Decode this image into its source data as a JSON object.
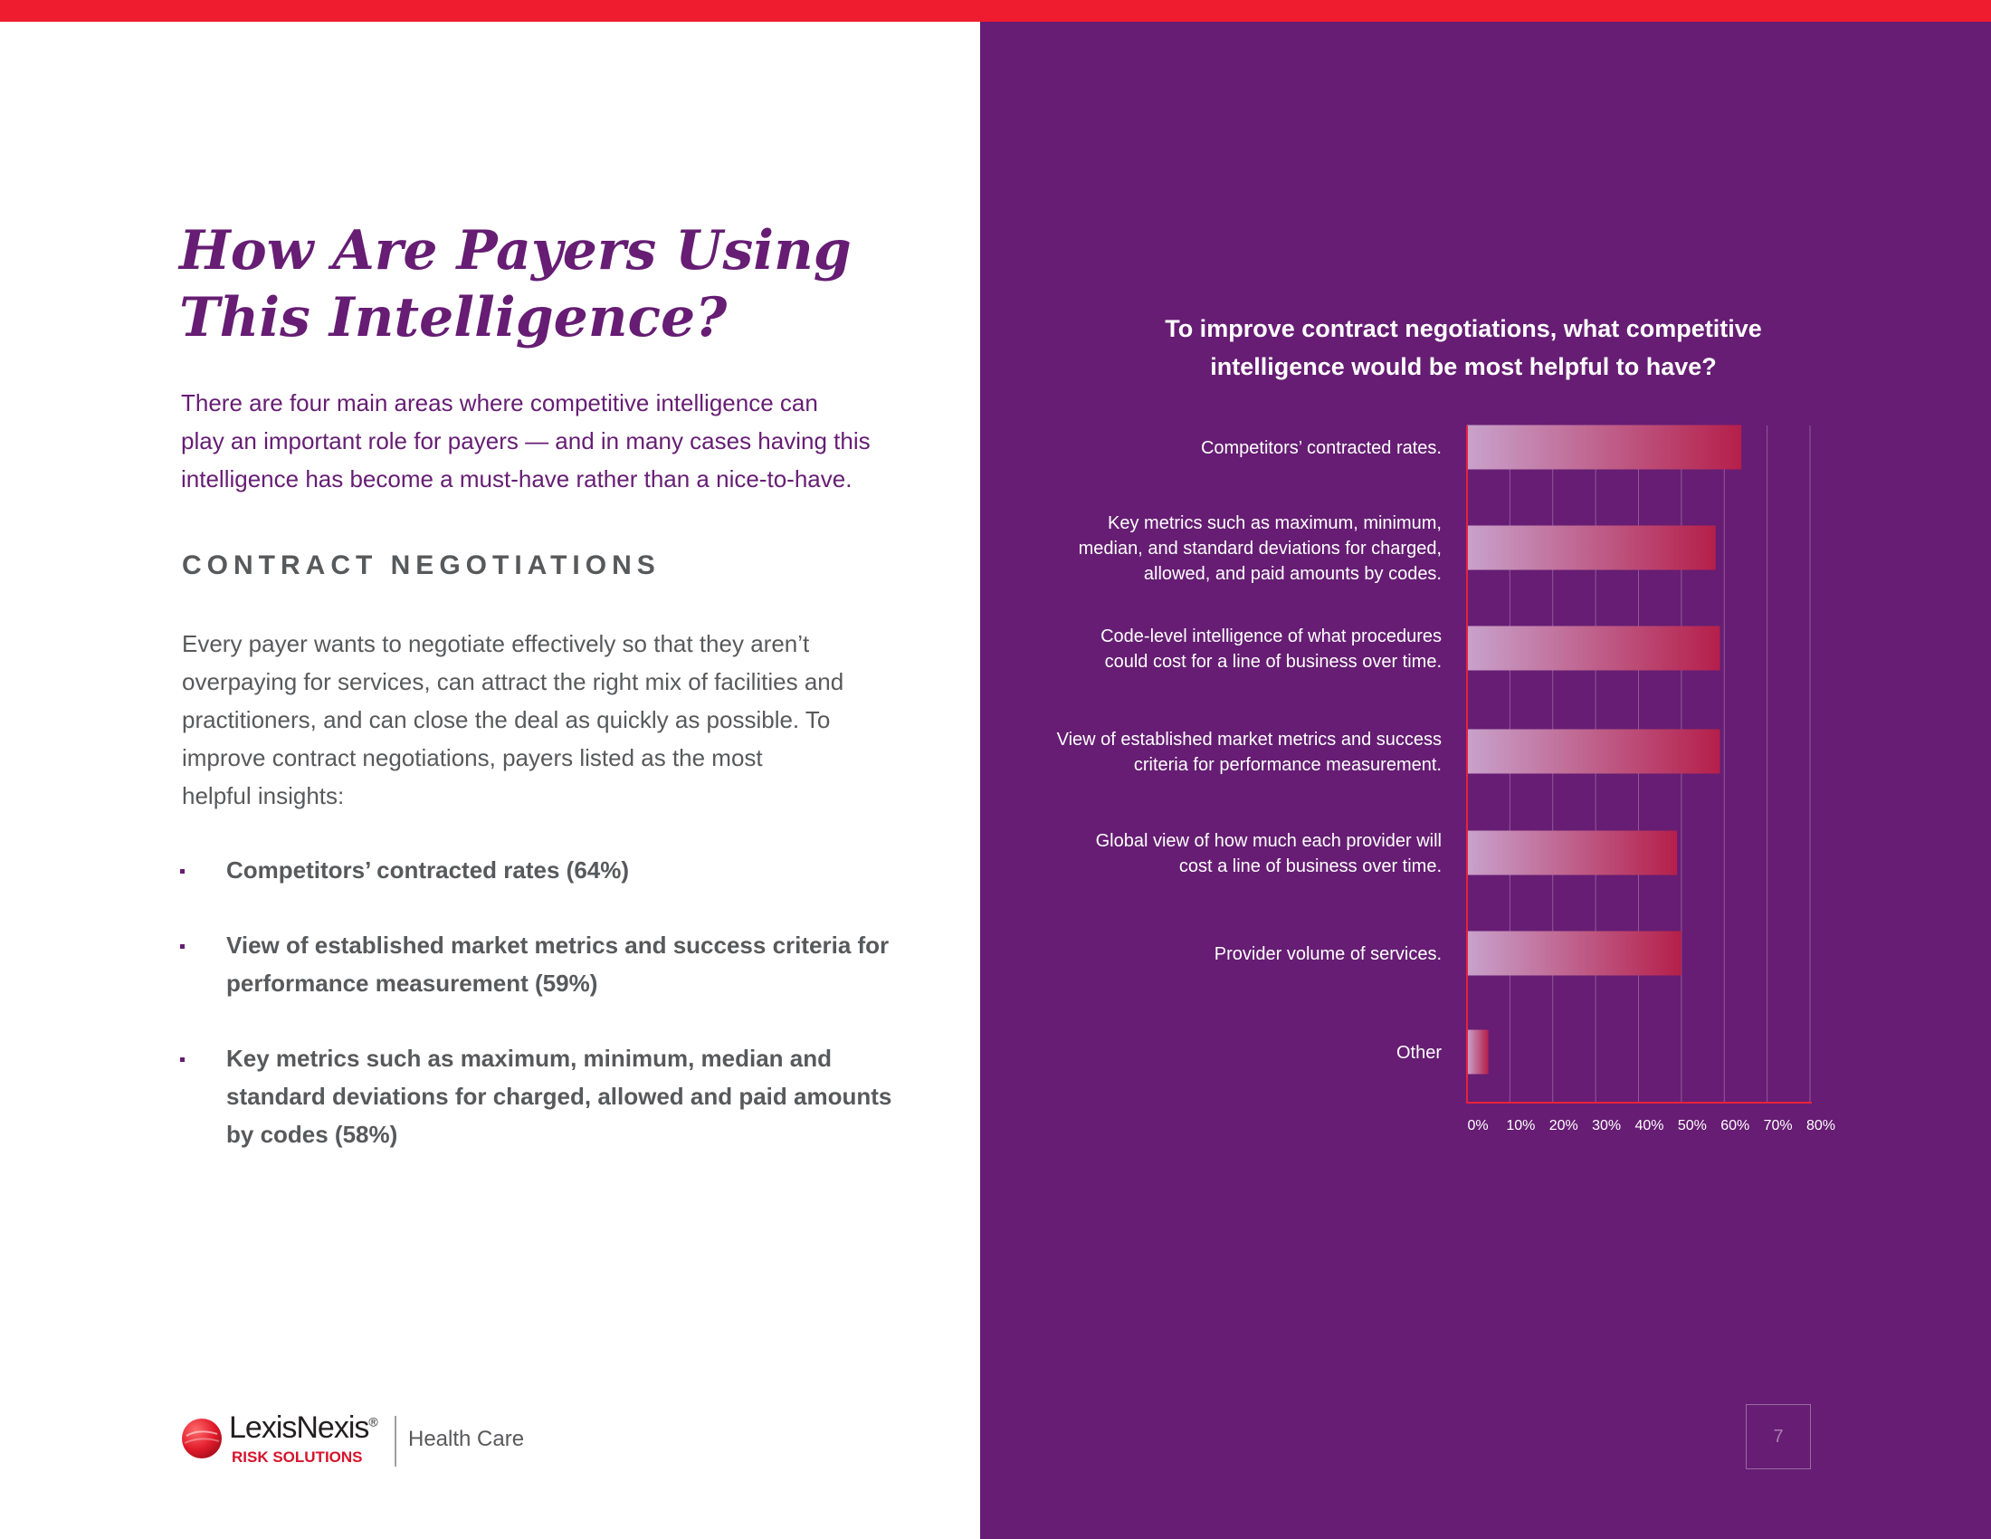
{
  "heading": {
    "line1": "How Are Payers Using",
    "line2": "This Intelligence?"
  },
  "intro": {
    "lines": [
      "There are four main areas where competitive intelligence can",
      "play an important role for payers — and in many cases having this",
      "intelligence has become a must-have rather than a nice-to-have."
    ]
  },
  "section_heading": "CONTRACT NEGOTIATIONS",
  "body": {
    "lines": [
      "Every payer wants to negotiate effectively so that they aren’t",
      "overpaying for services, can attract the right mix of facilities and",
      "practitioners, and can close the deal as quickly as possible. To",
      "improve contract negotiations, payers listed as the most",
      "helpful insights:"
    ]
  },
  "bullets": [
    {
      "lines": [
        "Competitors’ contracted rates (64%)"
      ]
    },
    {
      "lines": [
        "View of established market metrics and success criteria for",
        "performance measurement (59%)"
      ]
    },
    {
      "lines": [
        "Key metrics such as maximum, minimum, median and",
        "standard deviations for charged, allowed and paid amounts",
        "by codes (58%)"
      ]
    }
  ],
  "logo": {
    "name": "LexisNexis",
    "mark": "®",
    "sub": "RISK SOLUTIONS",
    "division": "Health Care"
  },
  "page_number": "7",
  "colors": {
    "brand_purple": "#661d73",
    "accent_red": "#ee1c2e",
    "bar_start": "#c8a2cc",
    "bar_end": "#b51f4a",
    "text_gray": "#58595b"
  },
  "chart_data": {
    "type": "bar",
    "orientation": "horizontal",
    "title_lines": [
      "To improve contract negotiations, what competitive",
      "intelligence would be most helpful to have?"
    ],
    "categories": [
      [
        "Competitors’ contracted rates."
      ],
      [
        "Key metrics such as maximum, minimum,",
        "median, and standard deviations for charged,",
        "allowed, and paid amounts by codes."
      ],
      [
        "Code-level intelligence of what procedures",
        "could cost for a line of business over time."
      ],
      [
        "View of established market metrics and success",
        "criteria for performance measurement."
      ],
      [
        "Global view of how much each provider will",
        "cost a line of business over time."
      ],
      [
        "Provider volume of services."
      ],
      [
        "Other"
      ]
    ],
    "values": [
      64,
      58,
      59,
      59,
      49,
      50,
      5
    ],
    "x_ticks": [
      "0%",
      "10%",
      "20%",
      "30%",
      "40%",
      "50%",
      "60%",
      "70%",
      "80%"
    ],
    "xlim": [
      0,
      80
    ],
    "unit": "%",
    "grid": true,
    "legend": false
  }
}
